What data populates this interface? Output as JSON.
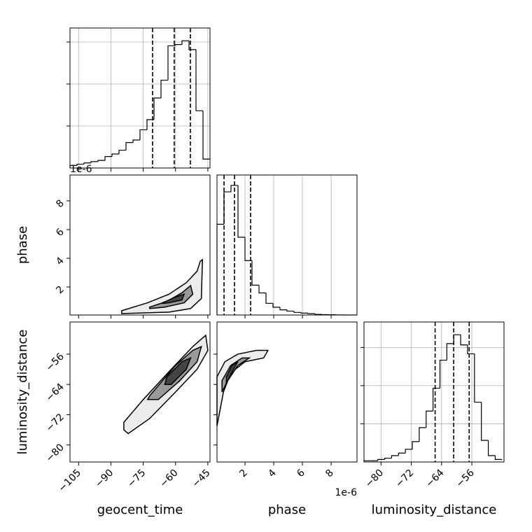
{
  "chart_data": {
    "type": "corner",
    "grid": true,
    "parameters": [
      {
        "name": "geocent_time",
        "lim": [
          -109,
          -44
        ],
        "ticks": [
          {
            "value": -105,
            "label": "−105"
          },
          {
            "value": -90,
            "label": "−90"
          },
          {
            "value": -75,
            "label": "−75"
          },
          {
            "value": -60,
            "label": "−60"
          },
          {
            "value": -45,
            "label": "−45"
          }
        ],
        "quantiles": [
          -70.65,
          -60.6,
          -53.1
        ]
      },
      {
        "name": "phase",
        "lim": [
          0.05,
          9.8
        ],
        "ticks": [
          2,
          4,
          6,
          8
        ],
        "offset_label": "1e-6",
        "quantiles": [
          0.54,
          1.27,
          2.39
        ]
      },
      {
        "name": "luminosity_distance",
        "lim": [
          -84.5,
          -47.5
        ],
        "ticks": [
          {
            "value": -80,
            "label": "−80"
          },
          {
            "value": -72,
            "label": "−72"
          },
          {
            "value": -64,
            "label": "−64"
          },
          {
            "value": -56,
            "label": "−56"
          }
        ],
        "quantiles": [
          -65.7,
          -60.8,
          -56.7
        ]
      }
    ],
    "histograms": [
      {
        "bins": [
          -109,
          -105.75,
          -102.5,
          -99.25,
          -96,
          -92.75,
          -89.5,
          -86.25,
          -83,
          -79.75,
          -76.5,
          -73.25,
          -70,
          -66.75,
          -63.5,
          -60.25,
          -57,
          -53.75,
          -50.5,
          -47.25,
          -44
        ],
        "counts": [
          0.02,
          0.03,
          0.04,
          0.05,
          0.06,
          0.09,
          0.11,
          0.14,
          0.2,
          0.22,
          0.3,
          0.38,
          0.55,
          0.69,
          0.96,
          0.97,
          1.0,
          0.93,
          0.45,
          0.07
        ],
        "ylim": [
          0,
          1.1
        ],
        "yticks": [
          0.33,
          0.66,
          0.99
        ]
      },
      {
        "bins": [
          0.05,
          0.5375,
          1.025,
          1.5125,
          2,
          2.4875,
          2.975,
          3.4625,
          3.95,
          4.4375,
          4.925,
          5.4125,
          5.9,
          6.3875,
          6.875,
          7.3625,
          7.85,
          8.3375,
          8.825,
          9.3125,
          9.8
        ],
        "counts": [
          0.7,
          0.95,
          1.0,
          0.6,
          0.42,
          0.23,
          0.17,
          0.09,
          0.06,
          0.04,
          0.03,
          0.02,
          0.015,
          0.01,
          0.005,
          0.003,
          0.002,
          0.001,
          0,
          0
        ],
        "ylim": [
          0,
          1.08
        ],
        "yticks": []
      },
      {
        "bins": [
          -84.5,
          -82.675,
          -80.85,
          -79.025,
          -77.2,
          -75.375,
          -73.55,
          -71.725,
          -69.9,
          -68.075,
          -66.25,
          -64.425,
          -62.6,
          -60.775,
          -58.95,
          -57.125,
          -55.3,
          -53.475,
          -51.65,
          -49.825,
          -48
        ],
        "counts": [
          0.01,
          0.01,
          0.02,
          0.03,
          0.05,
          0.07,
          0.1,
          0.16,
          0.27,
          0.4,
          0.58,
          0.8,
          0.93,
          1.0,
          0.92,
          0.85,
          0.47,
          0.17,
          0.05,
          0.02
        ],
        "ylim": [
          0,
          1.1
        ],
        "yticks": [
          0.3,
          0.6,
          0.9
        ]
      }
    ],
    "contours": [
      {
        "xparam": 0,
        "yparam": 1,
        "levels": [
          {
            "x": [
              -85,
              -73,
              -63,
              -55,
              -50,
              -48.5,
              -47.5,
              -48,
              -53,
              -63,
              -85
            ],
            "y": [
              0.35,
              0.9,
              1.5,
              2.3,
              3.1,
              3.8,
              3.9,
              1.2,
              0.5,
              0.25,
              0.15
            ]
          },
          {
            "x": [
              -72,
              -64,
              -57,
              -53,
              -52,
              -56,
              -65,
              -72
            ],
            "y": [
              0.6,
              1.0,
              1.6,
              2.1,
              1.5,
              0.9,
              0.6,
              0.5
            ]
          },
          {
            "x": [
              -66,
              -60,
              -56,
              -57,
              -63,
              -66
            ],
            "y": [
              0.9,
              1.3,
              1.5,
              1.1,
              0.9,
              0.85
            ]
          }
        ]
      },
      {
        "xparam": 0,
        "yparam": 2,
        "levels": [
          {
            "x": [
              -84,
              -75,
              -62,
              -52,
              -46,
              -45,
              -50,
              -60,
              -72,
              -82,
              -84
            ],
            "y": [
              -74,
              -68,
              -60,
              -54,
              -51,
              -55,
              -60,
              -66,
              -73,
              -77,
              -76
            ]
          },
          {
            "x": [
              -72,
              -60,
              -52,
              -48,
              -50,
              -58,
              -68,
              -73
            ],
            "y": [
              -67,
              -59,
              -55,
              -54,
              -58,
              -63,
              -68,
              -68
            ]
          },
          {
            "x": [
              -64,
              -57,
              -53,
              -55,
              -62,
              -65
            ],
            "y": [
              -62,
              -58,
              -57,
              -60,
              -64,
              -64
            ]
          }
        ]
      },
      {
        "xparam": 1,
        "yparam": 2,
        "levels": [
          {
            "x": [
              0.05,
              0.6,
              1.5,
              2.8,
              3.6,
              3.3,
              2.0,
              1.0,
              0.5,
              0.2,
              0.05
            ],
            "y": [
              -62,
              -58,
              -56,
              -55,
              -55,
              -57,
              -58,
              -61,
              -66,
              -72,
              -75
            ]
          },
          {
            "x": [
              0.4,
              1.0,
              1.8,
              2.3,
              1.5,
              0.8,
              0.4
            ],
            "y": [
              -63,
              -59,
              -57,
              -57,
              -59,
              -63,
              -66
            ]
          },
          {
            "x": [
              0.7,
              1.1,
              1.5,
              1.2,
              0.8,
              0.7
            ],
            "y": [
              -62,
              -59,
              -58,
              -60,
              -63,
              -64
            ]
          }
        ]
      }
    ]
  }
}
